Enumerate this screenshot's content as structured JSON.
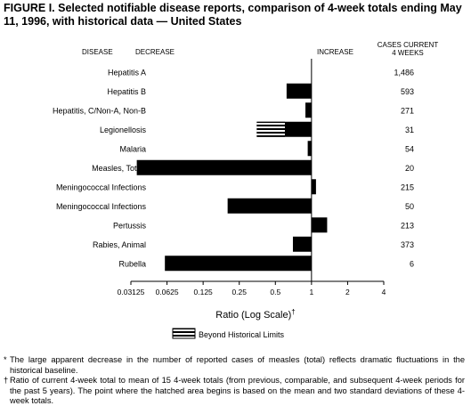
{
  "figure": {
    "title": "FIGURE I. Selected notifiable disease reports, comparison of 4-week totals ending May 11, 1996, with historical data — United States"
  },
  "chart_data": {
    "type": "bar",
    "orientation": "horizontal",
    "scale": "log2",
    "column_headers": {
      "disease": "DISEASE",
      "decrease": "DECREASE",
      "increase": "INCREASE",
      "cases": "CASES CURRENT\n4 WEEKS"
    },
    "categories": [
      "Hepatitis A",
      "Hepatitis B",
      "Hepatitis, C/Non-A, Non-B",
      "Legionellosis",
      "Malaria",
      "Measles, Total*",
      "Meningococcal Infections",
      "Meningococcal Infections",
      "Pertussis",
      "Rabies, Animal",
      "Rubella"
    ],
    "values": [
      1.0,
      0.62,
      0.89,
      0.35,
      0.93,
      0.035,
      1.09,
      0.2,
      1.35,
      0.7,
      0.06
    ],
    "beyond_historical_limits_start": [
      null,
      null,
      null,
      0.6,
      null,
      null,
      null,
      null,
      null,
      null,
      null
    ],
    "cases_current_4_weeks": [
      "1,486",
      "593",
      "271",
      "31",
      "54",
      "20",
      "215",
      "50",
      "213",
      "373",
      "6"
    ],
    "xticks": [
      0.03125,
      0.0625,
      0.125,
      0.25,
      0.5,
      1,
      2,
      4
    ],
    "xtick_labels": [
      "0.03125",
      "0.0625",
      "0.125",
      "0.25",
      "0.5",
      "1",
      "2",
      "4"
    ],
    "xlim": [
      0.03125,
      4
    ],
    "xlabel": "Ratio (Log Scale)",
    "xlabel_mark": "†",
    "legend": {
      "label": "Beyond Historical Limits",
      "position": "bottom"
    },
    "colors": {
      "bar": "#000000",
      "hatch": "#000000",
      "background": "#ffffff"
    }
  },
  "footnotes": [
    {
      "symbol": "*",
      "text": "The large apparent decrease in the number of reported cases of measles (total) reflects dramatic fluctuations in the historical baseline."
    },
    {
      "symbol": "†",
      "text": "Ratio of current 4-week total to mean of 15 4-week totals (from previous, comparable, and subsequent 4-week periods for the past 5 years). The point where the hatched area begins is based on the mean and two standard deviations of these 4-week totals."
    }
  ]
}
